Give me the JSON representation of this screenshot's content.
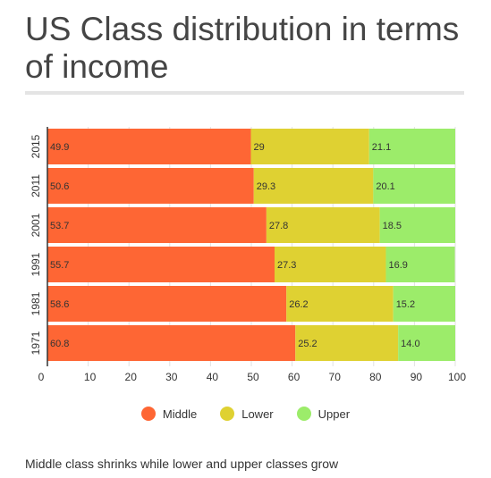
{
  "title": "US Class distribution in terms of income",
  "subtitle": "Middle class shrinks while lower and upper classes grow",
  "colors": {
    "Middle": "#fe6634",
    "Lower": "#dfd132",
    "Upper": "#9cec6a"
  },
  "chart_data": {
    "type": "bar",
    "orientation": "horizontal",
    "stacked": true,
    "categories": [
      "2015",
      "2011",
      "2001",
      "1991",
      "1981",
      "1971"
    ],
    "series": [
      {
        "name": "Middle",
        "values": [
          49.9,
          50.6,
          53.7,
          55.7,
          58.6,
          60.8
        ],
        "labels": [
          "49.9",
          "50.6",
          "53.7",
          "55.7",
          "58.6",
          "60.8"
        ]
      },
      {
        "name": "Lower",
        "values": [
          29,
          29.3,
          27.8,
          27.3,
          26.2,
          25.2
        ],
        "labels": [
          "29",
          "29.3",
          "27.8",
          "27.3",
          "26.2",
          "25.2"
        ]
      },
      {
        "name": "Upper",
        "values": [
          21.1,
          20.1,
          18.5,
          16.9,
          15.2,
          14.0
        ],
        "labels": [
          "21.1",
          "20.1",
          "18.5",
          "16.9",
          "15.2",
          "14.0"
        ]
      }
    ],
    "xlim": [
      0,
      100
    ],
    "xticks": [
      "0",
      "10",
      "20",
      "30",
      "40",
      "50",
      "60",
      "70",
      "80",
      "90",
      "100"
    ],
    "grid": true,
    "legend_position": "bottom"
  }
}
